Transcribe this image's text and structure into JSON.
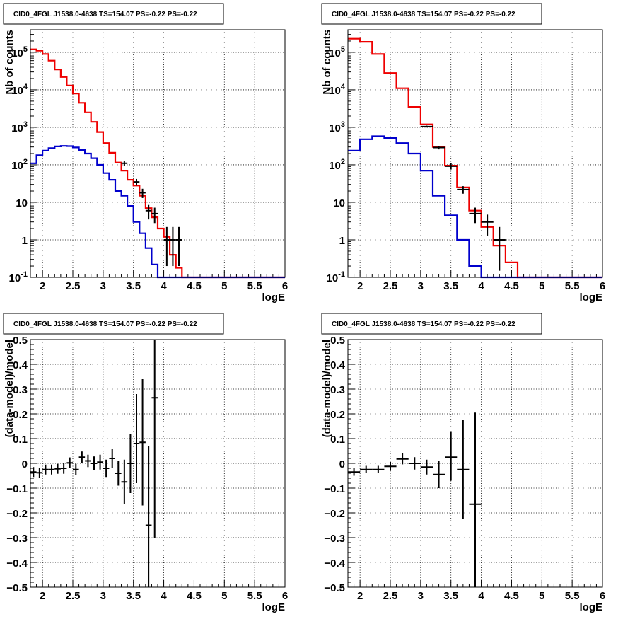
{
  "chart_data": [
    {
      "type": "line",
      "title": "CID0_4FGL J1538.0-4638 TS=154.07 PS=-0.22 PS=-0.22",
      "xlabel": "logE",
      "ylabel": "Nb of counts",
      "yscale": "log",
      "xlim": [
        1.8,
        6.0
      ],
      "ylim": [
        0.1,
        400000
      ],
      "xticks": [
        "2",
        "2.5",
        "3",
        "3.5",
        "4",
        "4.5",
        "5",
        "5.5",
        "6"
      ],
      "yticks": [
        "10^-1",
        "1",
        "10",
        "10^2",
        "10^3",
        "10^4",
        "10^5"
      ],
      "grid": true,
      "bin_edges": [
        1.8,
        1.9,
        2.0,
        2.1,
        2.2,
        2.3,
        2.4,
        2.5,
        2.6,
        2.7,
        2.8,
        2.9,
        3.0,
        3.1,
        3.2,
        3.3,
        3.4,
        3.5,
        3.6,
        3.7,
        3.8,
        3.9,
        4.0,
        4.1,
        4.2,
        4.3,
        4.4,
        4.5,
        4.6,
        4.7,
        4.8,
        4.9,
        5.0,
        5.1,
        5.2,
        5.3,
        5.4,
        5.5,
        5.6,
        5.7,
        5.8,
        5.9,
        6.0
      ],
      "series": [
        {
          "color": "#ee0000",
          "values": [
            120000,
            110000,
            90000,
            60000,
            35000,
            22000,
            13000,
            8000,
            4500,
            2500,
            1400,
            750,
            380,
            210,
            115,
            70,
            40,
            28,
            15,
            7,
            4,
            2,
            1.2,
            0.4,
            0.18,
            0.1,
            0.1,
            0.1,
            0.1,
            0.1,
            0.1,
            0.1,
            0.1,
            0.1,
            0.1,
            0.1,
            0.1,
            0.1,
            0.1,
            0.1,
            0.1,
            0.1
          ]
        },
        {
          "color": "#0000cc",
          "values": [
            110,
            180,
            240,
            280,
            310,
            320,
            315,
            290,
            250,
            200,
            150,
            100,
            60,
            40,
            20,
            15,
            8,
            3,
            1.5,
            0.6,
            0.22,
            0.1,
            0.1,
            0.1,
            0.1,
            0.1,
            0.1,
            0.1,
            0.1,
            0.1,
            0.1,
            0.1,
            0.1,
            0.1,
            0.1,
            0.1,
            0.1,
            0.1,
            0.1,
            0.1,
            0.1,
            0.1
          ]
        }
      ],
      "points": [
        {
          "x": 3.35,
          "y": 110,
          "ylo": 95,
          "yhi": 125
        },
        {
          "x": 3.55,
          "y": 35,
          "ylo": 28,
          "yhi": 42
        },
        {
          "x": 3.65,
          "y": 18,
          "ylo": 13,
          "yhi": 23
        },
        {
          "x": 3.75,
          "y": 6,
          "ylo": 3.5,
          "yhi": 8.5
        },
        {
          "x": 3.85,
          "y": 5,
          "ylo": 2.8,
          "yhi": 7.2
        },
        {
          "x": 4.05,
          "y": 1,
          "ylo": 0.2,
          "yhi": 2.2
        },
        {
          "x": 4.15,
          "y": 1,
          "ylo": 0.2,
          "yhi": 2.2
        },
        {
          "x": 4.25,
          "y": 1,
          "ylo": 0.2,
          "yhi": 2.2
        }
      ]
    },
    {
      "type": "line",
      "title": "CID0_4FGL J1538.0-4638 TS=154.07 PS=-0.22 PS=-0.22",
      "xlabel": "logE",
      "ylabel": "Nb of counts",
      "yscale": "log",
      "xlim": [
        1.8,
        6.0
      ],
      "ylim": [
        0.1,
        400000
      ],
      "xticks": [
        "2",
        "2.5",
        "3",
        "3.5",
        "4",
        "4.5",
        "5",
        "5.5",
        "6"
      ],
      "yticks": [
        "10^-1",
        "1",
        "10",
        "10^2",
        "10^3",
        "10^4",
        "10^5"
      ],
      "grid": true,
      "bin_edges": [
        1.8,
        2.0,
        2.2,
        2.4,
        2.6,
        2.8,
        3.0,
        3.2,
        3.4,
        3.6,
        3.8,
        4.0,
        4.2,
        4.4,
        4.6,
        4.8,
        5.0,
        5.2,
        5.4,
        5.6,
        5.8,
        6.0
      ],
      "series": [
        {
          "color": "#ee0000",
          "values": [
            230000,
            190000,
            90000,
            28000,
            11000,
            3500,
            1200,
            300,
            95,
            25,
            6,
            2.2,
            0.7,
            0.25,
            0.1,
            0.1,
            0.1,
            0.1,
            0.1,
            0.1,
            0.1
          ]
        },
        {
          "color": "#0000cc",
          "values": [
            240,
            480,
            580,
            520,
            380,
            200,
            70,
            15,
            4.5,
            1,
            0.2,
            0.1,
            0.1,
            0.1,
            0.1,
            0.1,
            0.1,
            0.1,
            0.1,
            0.1,
            0.1
          ]
        }
      ],
      "points": [
        {
          "x": 3.1,
          "y": 1050,
          "ylo": 990,
          "yhi": 1110
        },
        {
          "x": 3.3,
          "y": 290,
          "ylo": 258,
          "yhi": 322
        },
        {
          "x": 3.5,
          "y": 92,
          "ylo": 75,
          "yhi": 110
        },
        {
          "x": 3.7,
          "y": 22,
          "ylo": 17,
          "yhi": 27
        },
        {
          "x": 3.9,
          "y": 5,
          "ylo": 2.8,
          "yhi": 7.2
        },
        {
          "x": 4.1,
          "y": 3,
          "ylo": 1.3,
          "yhi": 4.7
        },
        {
          "x": 4.3,
          "y": 1,
          "ylo": 0.15,
          "yhi": 2.2
        }
      ]
    },
    {
      "type": "scatter",
      "title": "CID0_4FGL J1538.0-4638 TS=154.07 PS=-0.22 PS=-0.22",
      "xlabel": "logE",
      "ylabel": "(data-model)/model",
      "yscale": "linear",
      "xlim": [
        1.8,
        6.0
      ],
      "ylim": [
        -0.5,
        0.5
      ],
      "xticks": [
        "2",
        "2.5",
        "3",
        "3.5",
        "4",
        "4.5",
        "5",
        "5.5",
        "6"
      ],
      "yticks": [
        "−0.5",
        "−0.4",
        "−0.3",
        "−0.2",
        "−0.1",
        "0",
        "0.1",
        "0.2",
        "0.3",
        "0.4",
        "0.5"
      ],
      "grid": true,
      "points": [
        {
          "x": 1.85,
          "xerr": 0.05,
          "y": -0.035,
          "ylo": -0.055,
          "yhi": -0.015
        },
        {
          "x": 1.95,
          "xerr": 0.05,
          "y": -0.038,
          "ylo": -0.058,
          "yhi": -0.018
        },
        {
          "x": 2.05,
          "xerr": 0.05,
          "y": -0.025,
          "ylo": -0.045,
          "yhi": -0.005
        },
        {
          "x": 2.15,
          "xerr": 0.05,
          "y": -0.025,
          "ylo": -0.045,
          "yhi": -0.005
        },
        {
          "x": 2.25,
          "xerr": 0.05,
          "y": -0.022,
          "ylo": -0.042,
          "yhi": -0.002
        },
        {
          "x": 2.35,
          "xerr": 0.05,
          "y": -0.02,
          "ylo": -0.042,
          "yhi": 0.002
        },
        {
          "x": 2.45,
          "xerr": 0.05,
          "y": 0.002,
          "ylo": -0.02,
          "yhi": 0.024
        },
        {
          "x": 2.55,
          "xerr": 0.05,
          "y": -0.025,
          "ylo": -0.048,
          "yhi": -0.002
        },
        {
          "x": 2.65,
          "xerr": 0.05,
          "y": 0.025,
          "ylo": 0.002,
          "yhi": 0.048
        },
        {
          "x": 2.75,
          "xerr": 0.05,
          "y": 0.01,
          "ylo": -0.015,
          "yhi": 0.035
        },
        {
          "x": 2.85,
          "xerr": 0.05,
          "y": 0.0,
          "ylo": -0.028,
          "yhi": 0.028
        },
        {
          "x": 2.95,
          "xerr": 0.05,
          "y": 0.005,
          "ylo": -0.025,
          "yhi": 0.035
        },
        {
          "x": 3.05,
          "xerr": 0.05,
          "y": -0.02,
          "ylo": -0.055,
          "yhi": 0.015
        },
        {
          "x": 3.15,
          "xerr": 0.05,
          "y": 0.02,
          "ylo": -0.02,
          "yhi": 0.06
        },
        {
          "x": 3.25,
          "xerr": 0.05,
          "y": -0.04,
          "ylo": -0.09,
          "yhi": 0.01
        },
        {
          "x": 3.35,
          "xerr": 0.05,
          "y": -0.075,
          "ylo": -0.165,
          "yhi": 0.015
        },
        {
          "x": 3.45,
          "xerr": 0.05,
          "y": 0.0,
          "ylo": -0.12,
          "yhi": 0.12
        },
        {
          "x": 3.55,
          "xerr": 0.05,
          "y": 0.08,
          "ylo": -0.08,
          "yhi": 0.28
        },
        {
          "x": 3.65,
          "xerr": 0.05,
          "y": 0.085,
          "ylo": -0.17,
          "yhi": 0.34
        },
        {
          "x": 3.75,
          "xerr": 0.05,
          "y": -0.25,
          "ylo": -0.5,
          "yhi": 0.07
        },
        {
          "x": 3.85,
          "xerr": 0.05,
          "y": 0.265,
          "ylo": -0.3,
          "yhi": 0.5
        }
      ]
    },
    {
      "type": "scatter",
      "title": "CID0_4FGL J1538.0-4638 TS=154.07 PS=-0.22 PS=-0.22",
      "xlabel": "logE",
      "ylabel": "(data-model)/model",
      "yscale": "linear",
      "xlim": [
        1.8,
        6.0
      ],
      "ylim": [
        -0.5,
        0.5
      ],
      "xticks": [
        "2",
        "2.5",
        "3",
        "3.5",
        "4",
        "4.5",
        "5",
        "5.5",
        "6"
      ],
      "yticks": [
        "−0.5",
        "−0.4",
        "−0.3",
        "−0.2",
        "−0.1",
        "0",
        "0.1",
        "0.2",
        "0.3",
        "0.4",
        "0.5"
      ],
      "grid": true,
      "points": [
        {
          "x": 1.9,
          "xerr": 0.1,
          "y": -0.035,
          "ylo": -0.05,
          "yhi": -0.02
        },
        {
          "x": 2.1,
          "xerr": 0.1,
          "y": -0.025,
          "ylo": -0.04,
          "yhi": -0.01
        },
        {
          "x": 2.3,
          "xerr": 0.1,
          "y": -0.025,
          "ylo": -0.04,
          "yhi": -0.01
        },
        {
          "x": 2.5,
          "xerr": 0.1,
          "y": -0.012,
          "ylo": -0.03,
          "yhi": 0.006
        },
        {
          "x": 2.7,
          "xerr": 0.1,
          "y": 0.018,
          "ylo": -0.004,
          "yhi": 0.04
        },
        {
          "x": 2.9,
          "xerr": 0.1,
          "y": 0.0,
          "ylo": -0.025,
          "yhi": 0.025
        },
        {
          "x": 3.1,
          "xerr": 0.1,
          "y": -0.015,
          "ylo": -0.045,
          "yhi": 0.015
        },
        {
          "x": 3.3,
          "xerr": 0.1,
          "y": -0.045,
          "ylo": -0.1,
          "yhi": 0.01
        },
        {
          "x": 3.5,
          "xerr": 0.1,
          "y": 0.025,
          "ylo": -0.07,
          "yhi": 0.13
        },
        {
          "x": 3.7,
          "xerr": 0.1,
          "y": -0.025,
          "ylo": -0.225,
          "yhi": 0.175
        },
        {
          "x": 3.9,
          "xerr": 0.1,
          "y": -0.165,
          "ylo": -0.5,
          "yhi": 0.205
        }
      ]
    }
  ]
}
